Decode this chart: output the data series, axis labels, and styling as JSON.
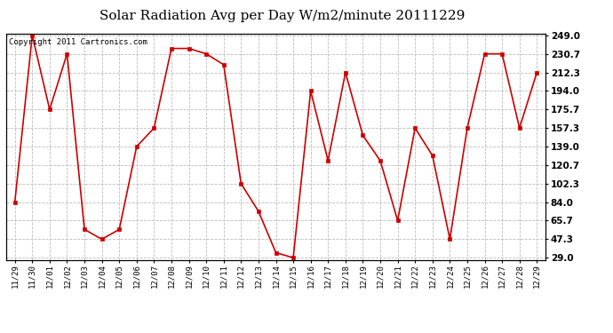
{
  "title": "Solar Radiation Avg per Day W/m2/minute 20111229",
  "copyright": "Copyright 2011 Cartronics.com",
  "x_labels": [
    "11/29",
    "11/30",
    "12/01",
    "12/02",
    "12/03",
    "12/04",
    "12/05",
    "12/06",
    "12/07",
    "12/08",
    "12/09",
    "12/10",
    "12/11",
    "12/12",
    "12/13",
    "12/14",
    "12/15",
    "12/16",
    "12/17",
    "12/18",
    "12/19",
    "12/20",
    "12/21",
    "12/22",
    "12/23",
    "12/24",
    "12/25",
    "12/26",
    "12/27",
    "12/28",
    "12/29"
  ],
  "y_values": [
    84.0,
    249.0,
    175.7,
    230.7,
    57.0,
    47.3,
    57.0,
    139.0,
    157.3,
    236.0,
    236.0,
    230.7,
    220.0,
    102.3,
    75.0,
    34.0,
    29.0,
    194.0,
    125.0,
    212.3,
    150.0,
    125.0,
    65.7,
    157.3,
    130.0,
    47.3,
    157.3,
    230.7,
    230.7,
    157.3,
    212.3
  ],
  "y_ticks": [
    29.0,
    47.3,
    65.7,
    84.0,
    102.3,
    120.7,
    139.0,
    157.3,
    175.7,
    194.0,
    212.3,
    230.7,
    249.0
  ],
  "y_min": 29.0,
  "y_max": 249.0,
  "line_color": "#cc0000",
  "marker_color": "#cc0000",
  "bg_color": "#ffffff",
  "plot_bg_color": "#ffffff",
  "grid_color": "#bbbbbb",
  "title_fontsize": 11,
  "copyright_fontsize": 6.5,
  "tick_fontsize": 7.5,
  "x_tick_fontsize": 6.5
}
